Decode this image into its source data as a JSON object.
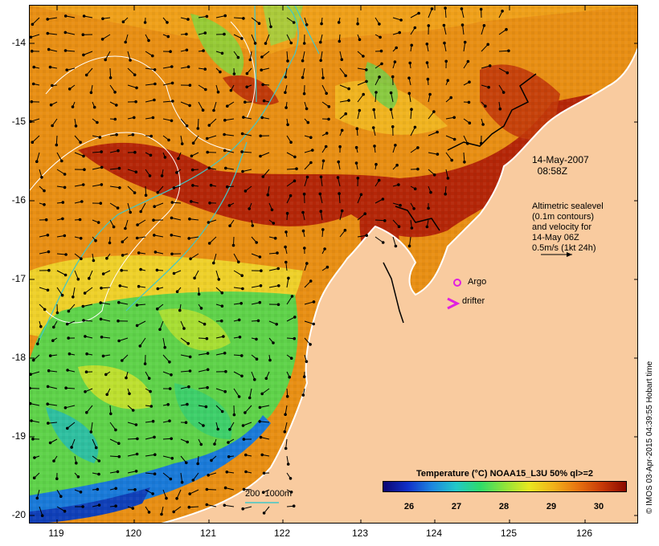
{
  "map": {
    "lat_labels": [
      "-14",
      "-15",
      "-16",
      "-17",
      "-18",
      "-19",
      "-20"
    ],
    "lon_labels": [
      "119",
      "120",
      "121",
      "122",
      "123",
      "124",
      "125",
      "126"
    ],
    "lon_range": [
      118.63,
      126.73
    ],
    "lat_range": [
      -20.05,
      -13.5
    ]
  },
  "annotations": {
    "timestamp": "14-May-2007\n  08:58Z",
    "altimetry": "Altimetric sealevel\n(0.1m contours)\nand velocity for\n14-May 06Z\n0.5m/s (1kt 24h)",
    "argo_label": "Argo",
    "drifter_label": "drifter",
    "depth_label": "200  1000m"
  },
  "colorbar": {
    "title": "Temperature (°C) NOAA15_L3U 50% ql>=2",
    "ticks": [
      "26",
      "27",
      "28",
      "29",
      "30"
    ]
  },
  "credit": "© IMOS 03-Apr-2015 04:39:55 Hobart time",
  "colors": {
    "land": "#f9cb9f",
    "contour_depth": "#40c8c8",
    "argo_marker": "#e020e0",
    "drifter_marker": "#e020e0"
  }
}
